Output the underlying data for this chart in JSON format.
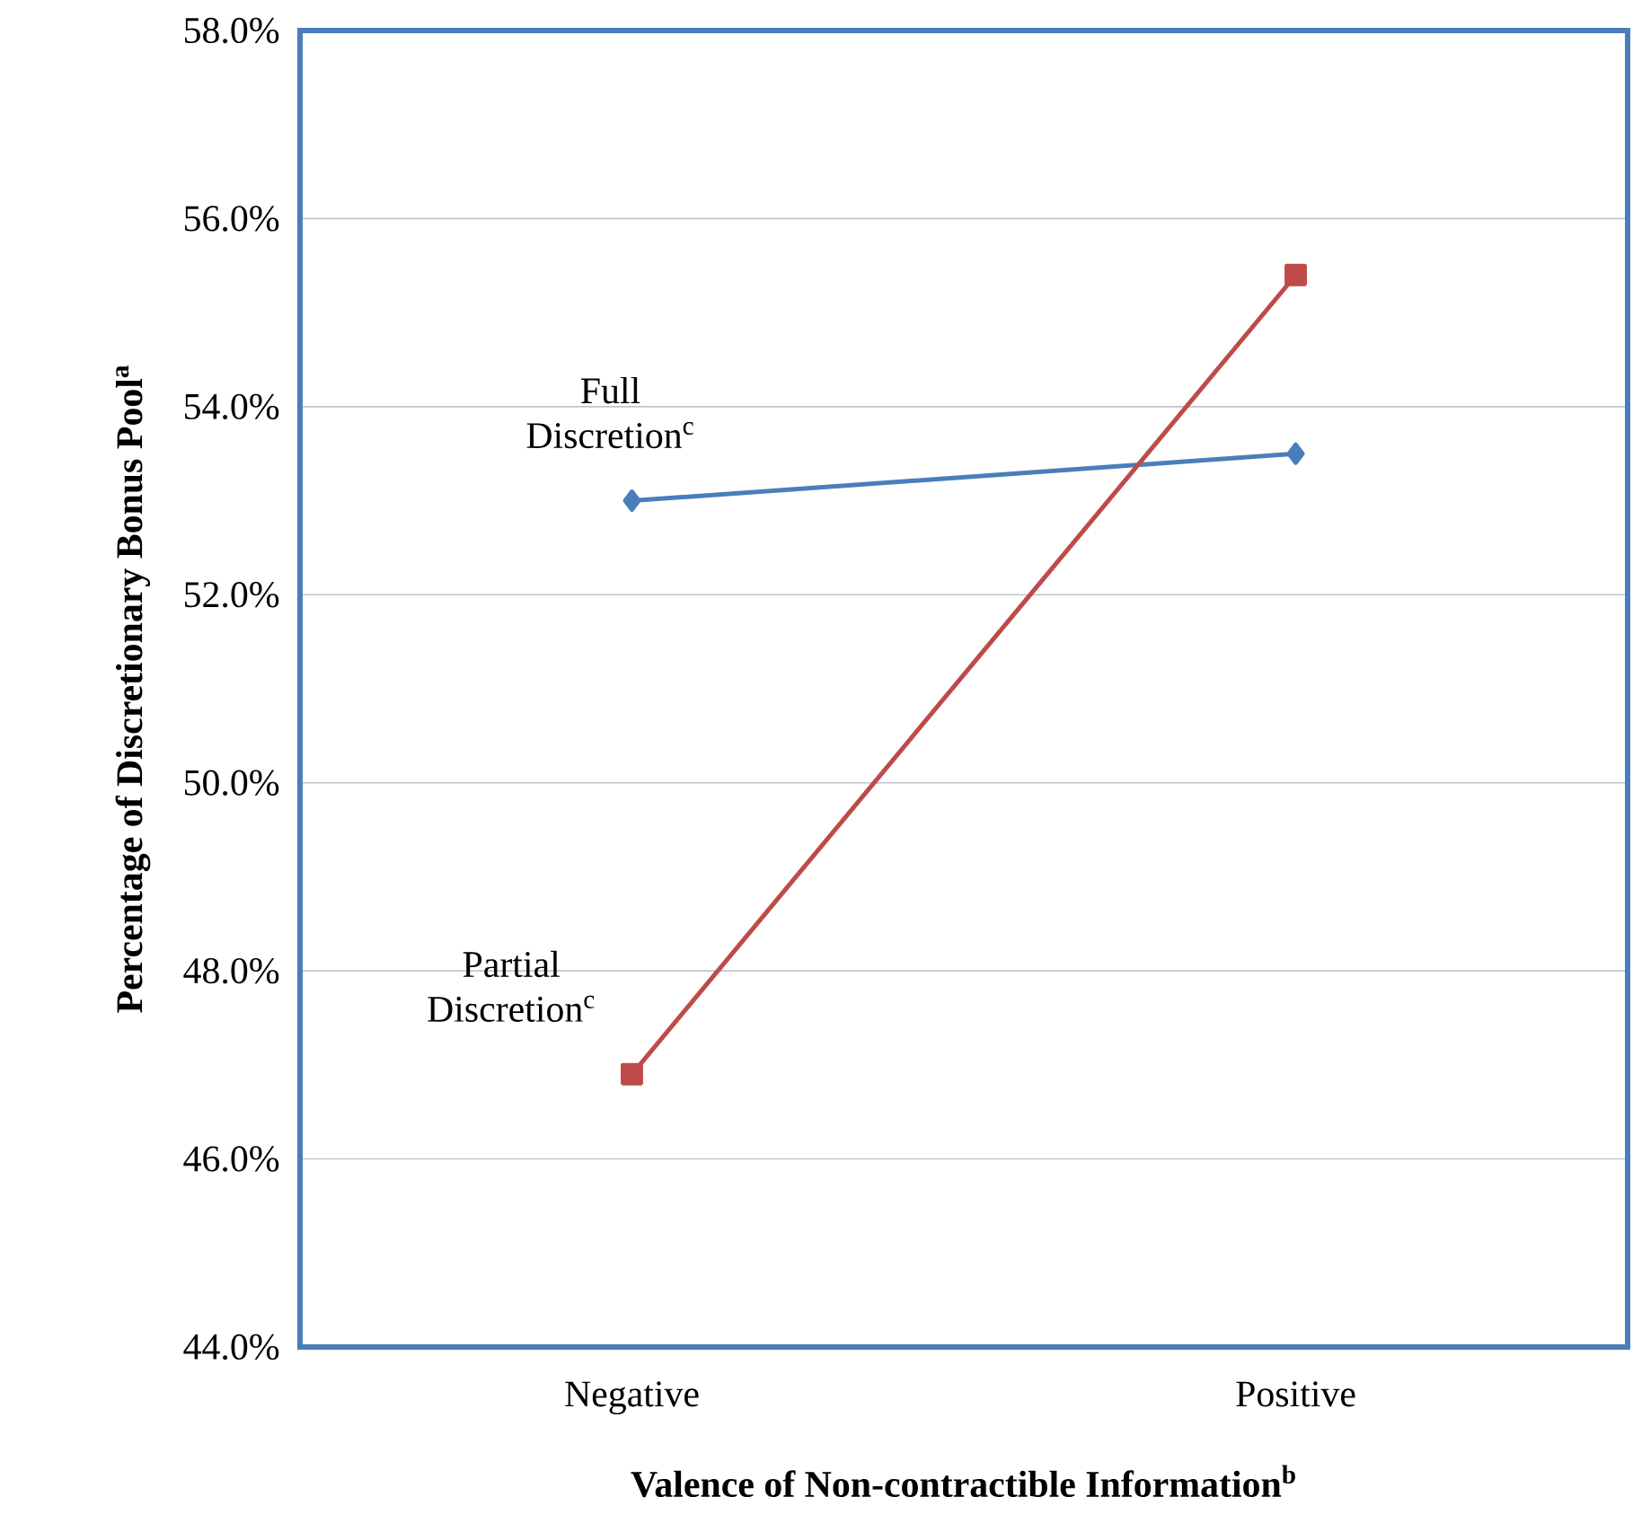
{
  "chart_data": {
    "type": "line",
    "xlabel": "Valence of Non-contractible Information$^{b}$",
    "ylabel": "Percentage of Discretionary Bonus Pool$^{a}$",
    "categories": [
      "Negative",
      "Positive"
    ],
    "series": [
      {
        "name": "Full Discretion$^{c}$",
        "color": "#4a7ebb",
        "marker": "diamond",
        "values": [
          53.0,
          53.5
        ]
      },
      {
        "name": "Partial Discretion$^{c}$",
        "color": "#be4b48",
        "marker": "square",
        "values": [
          46.9,
          55.4
        ]
      }
    ],
    "ylim": [
      44,
      58
    ],
    "yticks": [
      {
        "value": 44,
        "label": "44.0%"
      },
      {
        "value": 46,
        "label": "46.0%"
      },
      {
        "value": 48,
        "label": "48.0%"
      },
      {
        "value": 50,
        "label": "50.0%"
      },
      {
        "value": 52,
        "label": "52.0%"
      },
      {
        "value": 54,
        "label": "54.0%"
      },
      {
        "value": 56,
        "label": "56.0%"
      },
      {
        "value": 58,
        "label": "58.0%"
      }
    ],
    "grid": "y"
  }
}
